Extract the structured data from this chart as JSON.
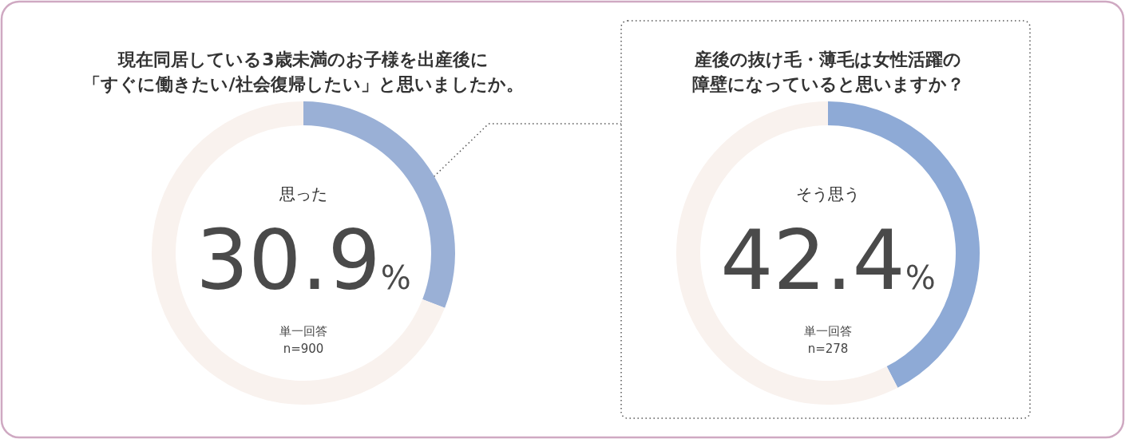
{
  "chart_data": [
    {
      "type": "donut",
      "title": "現在同居している3歳未満のお子様を出産後に",
      "subtitle": "「すぐに働きたい/社会復帰したい」と思いましたか。",
      "categories": [
        "思った",
        null
      ],
      "values": [
        30.9,
        69.1
      ],
      "colors": [
        "#9ab0d6",
        "#f9f2ee"
      ],
      "value_labels": [
        "30.9%",
        null
      ],
      "annotations": [
        "単一回答",
        "n=900"
      ]
    },
    {
      "type": "donut",
      "title": "産後の抜け毛・薄毛は女性活躍の",
      "subtitle": "障壁になっていると思いますか？",
      "categories": [
        "そう思う",
        null
      ],
      "values": [
        42.4,
        57.6
      ],
      "colors": [
        "#8eaad6",
        "#f9f2ee"
      ],
      "value_labels": [
        "42.4%",
        null
      ],
      "annotations": [
        "単一回答",
        "n=278"
      ]
    }
  ]
}
